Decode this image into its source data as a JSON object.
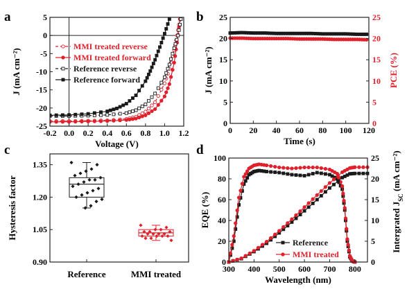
{
  "colors": {
    "black": "#1a1a1a",
    "red": "#e0202a",
    "gray": "#8c8c8c"
  },
  "chart_data": [
    {
      "panel": "a",
      "type": "line",
      "xlabel": "Voltage (V)",
      "ylabel": "J (mA cm⁻²)",
      "xlim": [
        -0.2,
        1.2
      ],
      "ylim": [
        -25,
        5
      ],
      "xticks": [
        "-0.2",
        "0.0",
        "0.2",
        "0.4",
        "0.6",
        "0.8",
        "1.0",
        "1.2"
      ],
      "yticks": [
        "-25",
        "-20",
        "-15",
        "-10",
        "-5",
        "0",
        "5"
      ],
      "legend_position": "upper-left",
      "series": [
        {
          "name": "MMI treated reverse",
          "color": "#e0202a",
          "style": "dashed",
          "marker": "open-circle",
          "x": [
            -0.2,
            0,
            0.2,
            0.4,
            0.6,
            0.7,
            0.8,
            0.9,
            1.0,
            1.05,
            1.1,
            1.13,
            1.16
          ],
          "y": [
            -23.6,
            -23.6,
            -23.5,
            -23.4,
            -23.0,
            -22.4,
            -21.0,
            -18.4,
            -13.2,
            -9.2,
            -4.0,
            0,
            4.5
          ]
        },
        {
          "name": "MMI treated forward",
          "color": "#e0202a",
          "style": "solid",
          "marker": "filled-circle",
          "x": [
            -0.2,
            0,
            0.2,
            0.4,
            0.6,
            0.7,
            0.8,
            0.9,
            1.0,
            1.05,
            1.1,
            1.13,
            1.16
          ],
          "y": [
            -23.8,
            -23.8,
            -23.7,
            -23.6,
            -23.3,
            -22.9,
            -22.0,
            -20.3,
            -16.8,
            -13.4,
            -7.5,
            -2.0,
            4.5
          ]
        },
        {
          "name": "Reference reverse",
          "color": "#1a1a1a",
          "style": "dashed",
          "marker": "open-square",
          "x": [
            -0.2,
            0,
            0.2,
            0.4,
            0.6,
            0.7,
            0.8,
            0.9,
            1.0,
            1.05,
            1.1,
            1.14,
            1.17
          ],
          "y": [
            -22.2,
            -22.2,
            -22.1,
            -21.9,
            -21.4,
            -20.6,
            -19.0,
            -16.0,
            -11.5,
            -8.0,
            -3.5,
            0,
            4.5
          ]
        },
        {
          "name": "Reference forward",
          "color": "#1a1a1a",
          "style": "solid",
          "marker": "filled-square",
          "x": [
            -0.2,
            0,
            0.2,
            0.4,
            0.5,
            0.6,
            0.7,
            0.8,
            0.85,
            0.9,
            0.95,
            1.0,
            1.05
          ],
          "y": [
            -22.0,
            -21.9,
            -21.6,
            -20.9,
            -20.1,
            -18.8,
            -16.5,
            -12.6,
            -9.8,
            -6.7,
            -3.2,
            0.5,
            4.5
          ]
        }
      ]
    },
    {
      "panel": "b",
      "type": "line",
      "xlabel": "Time (s)",
      "ylabel": "J (mA cm⁻²)",
      "ylabel_right": "PCE (%)",
      "xlim": [
        0,
        120
      ],
      "ylim": [
        0,
        25
      ],
      "ylim_right": [
        0,
        25
      ],
      "xticks": [
        "0",
        "20",
        "40",
        "60",
        "80",
        "100",
        "120"
      ],
      "yticks": [
        "0",
        "5",
        "10",
        "15",
        "20",
        "25"
      ],
      "series": [
        {
          "axis": "left",
          "color": "#1a1a1a",
          "marker": "filled-square",
          "x": [
            0,
            10,
            20,
            30,
            40,
            50,
            60,
            70,
            80,
            90,
            100,
            110,
            120
          ],
          "y": [
            21.3,
            21.4,
            21.3,
            21.3,
            21.2,
            21.2,
            21.2,
            21.2,
            21.1,
            21.1,
            21.1,
            21.0,
            21.0
          ]
        },
        {
          "axis": "right",
          "color": "#e0202a",
          "marker": "filled-circle",
          "x": [
            0,
            10,
            20,
            30,
            40,
            50,
            60,
            70,
            80,
            90,
            100,
            110,
            120
          ],
          "y": [
            20.1,
            20.1,
            20.0,
            20.0,
            20.0,
            20.0,
            19.9,
            19.9,
            19.9,
            19.8,
            19.8,
            19.8,
            19.7
          ]
        }
      ]
    },
    {
      "panel": "c",
      "type": "box",
      "ylabel": "Hysteresis factor",
      "ylim": [
        0.9,
        1.4
      ],
      "yticks": [
        "0.90",
        "1.05",
        "1.20",
        "1.35"
      ],
      "categories": [
        "Reference",
        "MMI treated"
      ],
      "series": [
        {
          "name": "Reference",
          "color": "#1a1a1a",
          "q1": 1.2,
          "median": 1.26,
          "q3": 1.29,
          "min": 1.15,
          "max": 1.36,
          "points": [
            1.36,
            1.35,
            1.33,
            1.32,
            1.31,
            1.3,
            1.29,
            1.28,
            1.28,
            1.27,
            1.26,
            1.25,
            1.24,
            1.23,
            1.22,
            1.21,
            1.2,
            1.19,
            1.18,
            1.16,
            1.15
          ]
        },
        {
          "name": "MMI treated",
          "color": "#e0202a",
          "q1": 1.02,
          "median": 1.035,
          "q3": 1.05,
          "min": 1.0,
          "max": 1.07,
          "points": [
            1.07,
            1.06,
            1.05,
            1.05,
            1.04,
            1.04,
            1.04,
            1.03,
            1.03,
            1.03,
            1.03,
            1.02,
            1.02,
            1.02,
            1.02,
            1.01,
            1.01,
            1.0
          ]
        }
      ]
    },
    {
      "panel": "d",
      "type": "line",
      "xlabel": "Wavelength (nm)",
      "ylabel": "EQE (%)",
      "ylabel_right": "Intergrated J",
      "ylabel_right_sub": "SC",
      "ylabel_right_unit": " (mA cm⁻²)",
      "xlim": [
        300,
        850
      ],
      "ylim": [
        0,
        100
      ],
      "ylim_right": [
        0,
        25
      ],
      "xticks": [
        "300",
        "400",
        "500",
        "600",
        "700",
        "800"
      ],
      "yticks": [
        "0",
        "20",
        "40",
        "60",
        "80",
        "100"
      ],
      "yticks_right": [
        "0",
        "5",
        "10",
        "15",
        "20",
        "25"
      ],
      "legend_position": "lower-center",
      "series": [
        {
          "name": "Reference",
          "axis": "left",
          "color": "#1a1a1a",
          "marker": "filled-square",
          "x": [
            300,
            320,
            340,
            360,
            380,
            400,
            420,
            450,
            500,
            550,
            600,
            650,
            700,
            730,
            750,
            760,
            770,
            780,
            790,
            800
          ],
          "y": [
            0,
            20,
            55,
            75,
            84,
            87,
            88,
            87,
            86,
            84,
            83,
            86,
            84,
            80,
            70,
            50,
            20,
            5,
            1,
            0
          ]
        },
        {
          "name": "MMI treated",
          "axis": "left",
          "color": "#e0202a",
          "marker": "filled-circle",
          "x": [
            300,
            320,
            340,
            360,
            380,
            400,
            420,
            450,
            500,
            550,
            600,
            650,
            700,
            730,
            750,
            760,
            770,
            780,
            790,
            800
          ],
          "y": [
            0,
            25,
            62,
            82,
            90,
            93,
            94,
            93,
            91,
            90,
            91,
            91,
            89,
            85,
            73,
            52,
            22,
            6,
            1,
            0
          ]
        },
        {
          "axis": "right",
          "color": "#1a1a1a",
          "marker": "filled-square",
          "x": [
            300,
            350,
            400,
            450,
            500,
            550,
            600,
            650,
            700,
            750,
            780,
            800,
            850
          ],
          "y": [
            0,
            0.8,
            2.5,
            4.5,
            7.0,
            9.6,
            12.3,
            15.0,
            17.8,
            20.3,
            21.2,
            21.3,
            21.3
          ]
        },
        {
          "axis": "right",
          "color": "#e0202a",
          "marker": "filled-circle",
          "x": [
            300,
            350,
            400,
            450,
            500,
            550,
            600,
            650,
            700,
            750,
            780,
            800,
            850
          ],
          "y": [
            0,
            0.9,
            2.7,
            4.9,
            7.5,
            10.3,
            13.2,
            16.1,
            19.0,
            21.6,
            22.6,
            22.8,
            22.8
          ]
        }
      ]
    }
  ]
}
